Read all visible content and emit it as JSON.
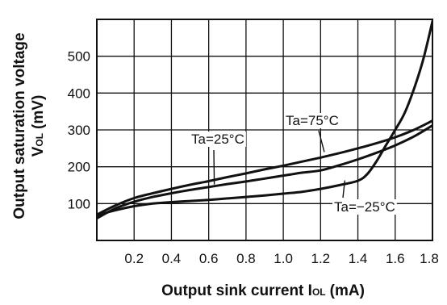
{
  "chart_data": {
    "type": "line",
    "ylabel": "Output saturation voltage",
    "ylabel_symbol": "V",
    "ylabel_subscript": "OL",
    "ylabel_unit": "(mV)",
    "xlabel": "Output sink current I",
    "xlabel_subscript": "OL",
    "xlabel_unit": "(mA)",
    "xlim": [
      0,
      1.8
    ],
    "ylim": [
      0,
      600
    ],
    "x_ticks": [
      0.2,
      0.4,
      0.6,
      0.8,
      1.0,
      1.2,
      1.4,
      1.6,
      1.8
    ],
    "x_tick_labels": [
      "0.2",
      "0.4",
      "0.6",
      "0.8",
      "1.0",
      "1.2",
      "1.4",
      "1.6",
      "1.8"
    ],
    "y_ticks": [
      100,
      200,
      300,
      400,
      500
    ],
    "y_tick_labels": [
      "100",
      "200",
      "300",
      "400",
      "500"
    ],
    "grid": true,
    "series": [
      {
        "name": "Ta=25°C",
        "x": [
          0.0,
          0.1,
          0.2,
          0.3,
          0.4,
          0.5,
          0.6,
          0.7,
          0.8,
          0.9,
          1.0,
          1.1,
          1.2,
          1.3,
          1.4,
          1.5,
          1.6,
          1.7,
          1.8
        ],
        "y": [
          70,
          95,
          115,
          128,
          140,
          151,
          161,
          172,
          182,
          193,
          203,
          214,
          225,
          237,
          250,
          264,
          280,
          300,
          325
        ]
      },
      {
        "name": "Ta=75°C",
        "x": [
          0.0,
          0.1,
          0.2,
          0.3,
          0.4,
          0.5,
          0.6,
          0.7,
          0.8,
          0.9,
          1.0,
          1.05,
          1.1,
          1.2,
          1.3,
          1.4,
          1.5,
          1.6,
          1.7,
          1.8
        ],
        "y": [
          60,
          87,
          105,
          118,
          128,
          137,
          145,
          153,
          160,
          168,
          176,
          180,
          184,
          190,
          204,
          220,
          238,
          258,
          282,
          312
        ]
      },
      {
        "name": "Ta=−25°C",
        "x": [
          0.0,
          0.1,
          0.2,
          0.3,
          0.4,
          0.5,
          0.6,
          0.7,
          0.8,
          0.9,
          1.0,
          1.1,
          1.2,
          1.3,
          1.4,
          1.45,
          1.5,
          1.55,
          1.6,
          1.65,
          1.7,
          1.75,
          1.8
        ],
        "y": [
          68,
          82,
          93,
          100,
          104,
          107,
          110,
          114,
          118,
          122,
          127,
          132,
          140,
          150,
          162,
          180,
          215,
          258,
          300,
          345,
          410,
          490,
          595
        ]
      }
    ],
    "annotations": [
      {
        "text": "Ta=25°C",
        "leader_to": [
          0.63,
          152
        ]
      },
      {
        "text": "Ta=75°C",
        "leader_to": [
          1.22,
          240
        ]
      },
      {
        "text": "Ta=−25°C",
        "leader_to": [
          1.33,
          163
        ]
      }
    ]
  }
}
